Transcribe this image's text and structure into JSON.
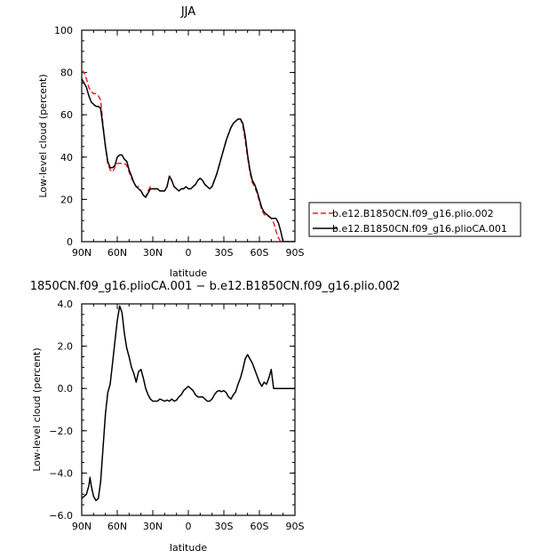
{
  "chart_data": [
    {
      "type": "line",
      "title": "JJA",
      "xlabel": "latitude",
      "ylabel": "Low-level cloud (percent)",
      "xlim": [
        90,
        -90
      ],
      "ylim": [
        0,
        100
      ],
      "xticks": [
        90,
        60,
        30,
        0,
        -30,
        -60,
        -90
      ],
      "xtick_labels": [
        "90N",
        "60N",
        "30N",
        "0",
        "30S",
        "60S",
        "90S"
      ],
      "yticks": [
        0,
        20,
        40,
        60,
        80,
        100
      ],
      "ytick_labels": [
        "0",
        "20",
        "40",
        "60",
        "80",
        "100"
      ],
      "legend": "right",
      "series": [
        {
          "name": "b.e12.B1850CN.f09_g16.plio.002",
          "color": "#e8202a",
          "dash": "dashed",
          "x": [
            90,
            88,
            86,
            84,
            82,
            80,
            78,
            76,
            74,
            72,
            70,
            68,
            66,
            64,
            62,
            60,
            58,
            56,
            54,
            52,
            50,
            48,
            46,
            44,
            42,
            40,
            38,
            36,
            34,
            32,
            30,
            28,
            26,
            24,
            22,
            20,
            18,
            16,
            14,
            12,
            10,
            8,
            6,
            4,
            2,
            0,
            -2,
            -4,
            -6,
            -8,
            -10,
            -12,
            -14,
            -16,
            -18,
            -20,
            -22,
            -24,
            -26,
            -28,
            -30,
            -32,
            -34,
            -36,
            -38,
            -40,
            -42,
            -44,
            -46,
            -48,
            -50,
            -52,
            -54,
            -56,
            -58,
            -60,
            -62,
            -64,
            -66,
            -68,
            -70,
            -72,
            -74,
            -76,
            -78,
            -80,
            -82,
            -84,
            -86,
            -88,
            -90
          ],
          "values": [
            81,
            80,
            77,
            73,
            71,
            70,
            70,
            69,
            67,
            55,
            45,
            37,
            34,
            33,
            35,
            37,
            37,
            37,
            37,
            36,
            33,
            30,
            28,
            26,
            26,
            24,
            22,
            21,
            24,
            26,
            25,
            25,
            25,
            24,
            24,
            24,
            26,
            31,
            29,
            26,
            25,
            24,
            25,
            25,
            26,
            25,
            25,
            26,
            27,
            29,
            30,
            29,
            27,
            26,
            25,
            26,
            29,
            32,
            36,
            40,
            44,
            48,
            51,
            54,
            56,
            57,
            58,
            58,
            55,
            48,
            40,
            33,
            28,
            26,
            23,
            19,
            15,
            13,
            12,
            12,
            11,
            9,
            5,
            2,
            0,
            0,
            0,
            0,
            0,
            0,
            0
          ]
        },
        {
          "name": "b.e12.B1850CN.f09_g16.plioCA.001",
          "color": "#000000",
          "dash": "solid",
          "x": [
            90,
            88,
            86,
            84,
            82,
            80,
            78,
            76,
            74,
            72,
            70,
            68,
            66,
            64,
            62,
            60,
            58,
            56,
            54,
            52,
            50,
            48,
            46,
            44,
            42,
            40,
            38,
            36,
            34,
            32,
            30,
            28,
            26,
            24,
            22,
            20,
            18,
            16,
            14,
            12,
            10,
            8,
            6,
            4,
            2,
            0,
            -2,
            -4,
            -6,
            -8,
            -10,
            -12,
            -14,
            -16,
            -18,
            -20,
            -22,
            -24,
            -26,
            -28,
            -30,
            -32,
            -34,
            -36,
            -38,
            -40,
            -42,
            -44,
            -46,
            -48,
            -50,
            -52,
            -54,
            -56,
            -58,
            -60,
            -62,
            -64,
            -66,
            -68,
            -70,
            -72,
            -74,
            -76,
            -78,
            -80,
            -82,
            -84,
            -86,
            -88,
            -90
          ],
          "values": [
            77,
            75,
            73,
            69,
            66,
            65,
            64,
            64,
            63,
            54,
            45,
            38,
            35,
            35,
            36,
            40,
            41,
            41,
            39,
            38,
            34,
            31,
            28,
            26,
            25,
            24,
            22,
            21,
            23,
            25,
            25,
            25,
            25,
            24,
            24,
            24,
            26,
            31,
            29,
            26,
            25,
            24,
            25,
            25,
            26,
            25,
            25,
            26,
            27,
            29,
            30,
            29,
            27,
            26,
            25,
            26,
            29,
            32,
            36,
            40,
            44,
            48,
            51,
            54,
            56,
            57,
            58,
            58,
            56,
            50,
            41,
            34,
            29,
            27,
            24,
            20,
            16,
            14,
            13,
            12,
            11,
            11,
            11,
            9,
            5,
            0,
            0,
            0,
            0,
            0,
            0
          ]
        }
      ]
    },
    {
      "type": "line",
      "title": "1850CN.f09_g16.plioCA.001 − b.e12.B1850CN.f09_g16.plio.002",
      "xlabel": "latitude",
      "ylabel": "Low-level cloud (percent)",
      "xlim": [
        90,
        -90
      ],
      "ylim": [
        -6,
        4
      ],
      "xticks": [
        90,
        60,
        30,
        0,
        -30,
        -60,
        -90
      ],
      "xtick_labels": [
        "90N",
        "60N",
        "30N",
        "0",
        "30S",
        "60S",
        "90S"
      ],
      "yticks": [
        -6,
        -4,
        -2,
        0,
        2,
        4
      ],
      "ytick_labels": [
        "−6.0",
        "−4.0",
        "−2.0",
        "0.0",
        "2.0",
        "4.0"
      ],
      "series": [
        {
          "color": "#000000",
          "dash": "solid",
          "x": [
            90,
            88,
            86,
            84,
            83,
            82,
            80,
            78,
            76,
            74,
            72,
            70,
            68,
            66,
            64,
            62,
            60,
            58,
            56,
            54,
            52,
            50,
            48,
            46,
            44,
            42,
            40,
            38,
            36,
            34,
            32,
            30,
            28,
            26,
            24,
            22,
            20,
            18,
            16,
            14,
            12,
            10,
            8,
            6,
            4,
            2,
            0,
            -2,
            -4,
            -6,
            -8,
            -10,
            -12,
            -14,
            -16,
            -18,
            -20,
            -22,
            -24,
            -26,
            -28,
            -30,
            -32,
            -34,
            -36,
            -38,
            -40,
            -42,
            -44,
            -46,
            -48,
            -50,
            -52,
            -54,
            -56,
            -58,
            -60,
            -62,
            -64,
            -66,
            -68,
            -70,
            -72,
            -74,
            -76,
            -78,
            -80,
            -82,
            -84,
            -86,
            -88,
            -90
          ],
          "values": [
            -5.2,
            -5.1,
            -5.0,
            -4.6,
            -4.2,
            -4.6,
            -5.1,
            -5.3,
            -5.2,
            -4.4,
            -2.8,
            -1.2,
            -0.2,
            0.2,
            1.2,
            2.2,
            3.2,
            3.9,
            3.6,
            2.6,
            1.9,
            1.5,
            1.0,
            0.7,
            0.3,
            0.8,
            0.9,
            0.5,
            0.0,
            -0.3,
            -0.5,
            -0.6,
            -0.6,
            -0.6,
            -0.5,
            -0.55,
            -0.6,
            -0.55,
            -0.6,
            -0.5,
            -0.6,
            -0.55,
            -0.4,
            -0.3,
            -0.1,
            0.0,
            0.1,
            0.0,
            -0.1,
            -0.3,
            -0.4,
            -0.4,
            -0.4,
            -0.5,
            -0.6,
            -0.6,
            -0.5,
            -0.3,
            -0.15,
            -0.1,
            -0.15,
            -0.1,
            -0.2,
            -0.4,
            -0.5,
            -0.3,
            -0.15,
            0.2,
            0.5,
            0.9,
            1.4,
            1.6,
            1.4,
            1.2,
            0.9,
            0.6,
            0.3,
            0.1,
            0.3,
            0.2,
            0.5,
            0.9,
            0.0,
            0.0,
            0.0,
            0.0,
            0.0,
            0.0,
            0.0,
            0.0,
            0.0,
            0.0
          ]
        }
      ]
    }
  ]
}
